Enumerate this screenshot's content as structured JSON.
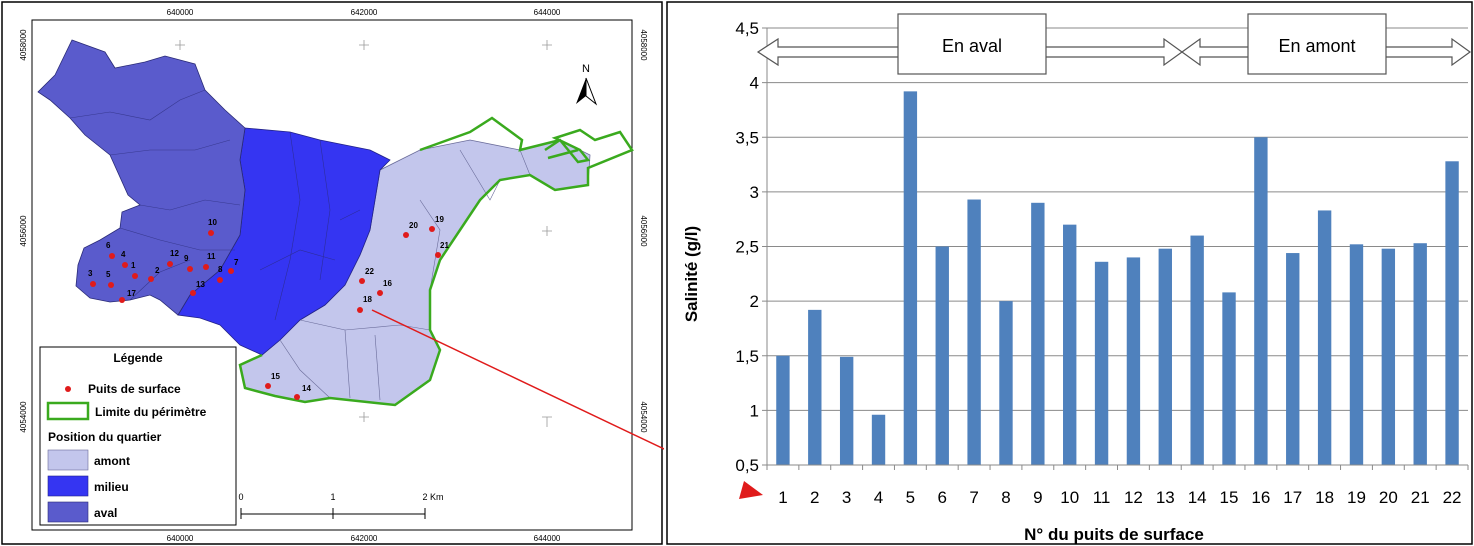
{
  "map": {
    "coords": {
      "top": [
        "640000",
        "642000",
        "644000"
      ],
      "bottom": [
        "640000",
        "642000",
        "644000"
      ],
      "left": [
        "4058000",
        "4056000",
        "4054000"
      ],
      "right": [
        "4058000",
        "4056000",
        "4054000"
      ]
    },
    "north": "N",
    "legend": {
      "title": "Légende",
      "wells": "Puits de surface",
      "perimeter": "Limite du périmètre",
      "position_title": "Position du quartier",
      "amont": "amont",
      "milieu": "milieu",
      "aval": "aval"
    },
    "scale": {
      "l0": "0",
      "l1": "1",
      "l2": "2 Km"
    },
    "colors": {
      "amont": "#c3c6ec",
      "milieu": "#3535f2",
      "aval": "#5a5bcc",
      "well": "#e01b1b",
      "perimeter": "#3aaa1e"
    },
    "wells": [
      {
        "id": "1"
      },
      {
        "id": "2"
      },
      {
        "id": "3"
      },
      {
        "id": "4"
      },
      {
        "id": "5"
      },
      {
        "id": "6"
      },
      {
        "id": "7"
      },
      {
        "id": "8"
      },
      {
        "id": "9"
      },
      {
        "id": "10"
      },
      {
        "id": "11"
      },
      {
        "id": "12"
      },
      {
        "id": "13"
      },
      {
        "id": "14"
      },
      {
        "id": "15"
      },
      {
        "id": "16"
      },
      {
        "id": "17"
      },
      {
        "id": "18"
      },
      {
        "id": "19"
      },
      {
        "id": "20"
      },
      {
        "id": "21"
      },
      {
        "id": "22"
      }
    ]
  },
  "chart_data": {
    "type": "bar",
    "categories": [
      "1",
      "2",
      "3",
      "4",
      "5",
      "6",
      "7",
      "8",
      "9",
      "10",
      "11",
      "12",
      "13",
      "14",
      "15",
      "16",
      "17",
      "18",
      "19",
      "20",
      "21",
      "22"
    ],
    "values": [
      1.5,
      1.92,
      1.49,
      0.96,
      3.92,
      2.5,
      2.93,
      2.0,
      2.9,
      2.7,
      2.36,
      2.4,
      2.48,
      2.6,
      2.08,
      3.5,
      2.44,
      2.83,
      2.52,
      2.48,
      2.53,
      3.28
    ],
    "ylim": [
      0.5,
      4.5
    ],
    "yticks": [
      "0,5",
      "1",
      "1,5",
      "2",
      "2,5",
      "3",
      "3,5",
      "4",
      "4,5"
    ],
    "ylabel": "Salinité (g/l)",
    "xlabel": "N° du puits de surface",
    "grid": true,
    "bar_color": "#4f81bd",
    "annotations": {
      "aval": "En aval",
      "amont": "En amont"
    }
  }
}
